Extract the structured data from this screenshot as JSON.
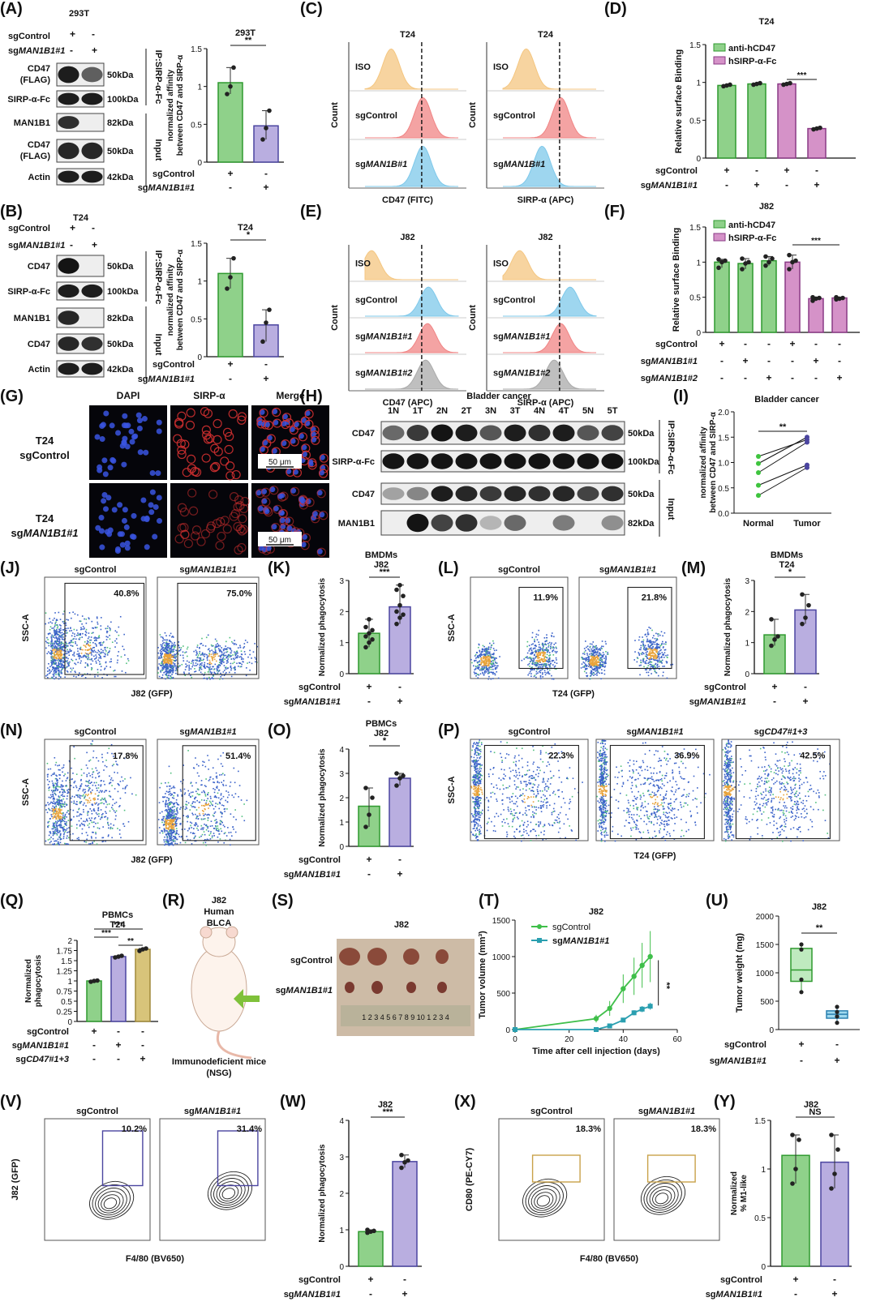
{
  "panels": {
    "A": {
      "letter": "(A)",
      "cell": "293T",
      "title": "293T",
      "conds": [
        {
          "label": "sgControl",
          "vals": [
            "+",
            "-"
          ]
        },
        {
          "label": "sgMAN1B1#1",
          "vals": [
            "-",
            "+"
          ]
        }
      ],
      "bands": [
        {
          "label": "CD47 (FLAG)",
          "kda": "50kDa"
        },
        {
          "label": "SIRP-α-Fc",
          "kda": "100kDa"
        },
        {
          "label": "MAN1B1",
          "kda": "82kDa"
        },
        {
          "label": "CD47 (FLAG)",
          "kda": "50kDa"
        },
        {
          "label": "Actin",
          "kda": "42kDa"
        }
      ],
      "ip": "IP:SIRP-α-Fc",
      "input": "Input",
      "ylabel": "normalized affinity between CD47 and SIRP-α",
      "sig": "**"
    },
    "B": {
      "letter": "(B)",
      "cell": "T24",
      "title": "T24",
      "conds": [
        {
          "label": "sgControl",
          "vals": [
            "+",
            "-"
          ]
        },
        {
          "label": "sgMAN1B1#1",
          "vals": [
            "-",
            "+"
          ]
        }
      ],
      "bands": [
        {
          "label": "CD47",
          "kda": "50kDa"
        },
        {
          "label": "SIRP-α-Fc",
          "kda": "100kDa"
        },
        {
          "label": "MAN1B1",
          "kda": "82kDa"
        },
        {
          "label": "CD47",
          "kda": "50kDa"
        },
        {
          "label": "Actin",
          "kda": "42kDa"
        }
      ],
      "ip": "IP:SIRP-α-Fc",
      "input": "Input",
      "ylabel": "normalized affinity between CD47 and SIRP-α",
      "sig": "*"
    },
    "C": {
      "letter": "(C)",
      "titles": [
        "T24",
        "T24"
      ],
      "rows": [
        "ISO",
        "sgControl",
        "sgMAN1B#1"
      ],
      "xlabels": [
        "CD47 (FITC)",
        "SIRP-α (APC)"
      ],
      "ylabel": "Count"
    },
    "D": {
      "letter": "(D)",
      "title": "T24",
      "legend": [
        "anti-hCD47",
        "hSIRP-α-Fc"
      ],
      "ylabel": "Relative surface Binding",
      "sig": "***"
    },
    "E": {
      "letter": "(E)",
      "titles": [
        "J82",
        "J82"
      ],
      "rows": [
        "ISO",
        "sgControl",
        "sgMAN1B1#1",
        "sgMAN1B1#2"
      ],
      "xlabels": [
        "CD47 (APC)",
        "SIRP-α (APC)"
      ],
      "ylabel": "Count"
    },
    "F": {
      "letter": "(F)",
      "title": "J82",
      "legend": [
        "anti-hCD47",
        "hSIRP-α-Fc"
      ],
      "ylabel": "Relative surface Binding",
      "sig": "***"
    },
    "G": {
      "letter": "(G)",
      "cols": [
        "DAPI",
        "SIRP-α",
        "Merge"
      ],
      "rows": [
        "T24 sgControl",
        "T24 sgMAN1B1#1"
      ],
      "scale": "50 μm"
    },
    "H": {
      "letter": "(H)",
      "title": "Bladder cancer",
      "lanes": [
        "1N",
        "1T",
        "2N",
        "2T",
        "3N",
        "3T",
        "4N",
        "4T",
        "5N",
        "5T"
      ],
      "bands": [
        {
          "label": "CD47",
          "kda": "50kDa"
        },
        {
          "label": "SIRP-α-Fc",
          "kda": "100kDa"
        },
        {
          "label": "CD47",
          "kda": "50kDa"
        },
        {
          "label": "MAN1B1",
          "kda": "82kDa"
        }
      ],
      "ip": "IP:SIRP-α-Fc",
      "input": "Input"
    },
    "I": {
      "letter": "(I)",
      "title": "Bladder cancer",
      "ylabel": "normalized affinity between CD47 and SIRP-α",
      "xcats": [
        "Normal",
        "Tumor"
      ],
      "sig": "**"
    },
    "J": {
      "letter": "(J)",
      "titles": [
        "sgControl",
        "sgMAN1B1#1"
      ],
      "pcts": [
        "40.8%",
        "75.0%"
      ],
      "xlabel": "J82 (GFP)",
      "ylabel": "SSC-A"
    },
    "K": {
      "letter": "(K)",
      "title": "BMDMs J82",
      "ylabel": "Normalized phagocytosis",
      "sig": "***"
    },
    "L": {
      "letter": "(L)",
      "titles": [
        "sgControl",
        "sgMAN1B1#1"
      ],
      "pcts": [
        "11.9%",
        "21.8%"
      ],
      "xlabel": "T24 (GFP)",
      "ylabel": "SSC-A"
    },
    "M": {
      "letter": "(M)",
      "title": "BMDMs T24",
      "ylabel": "Normalized phagocytosis",
      "sig": "*"
    },
    "N": {
      "letter": "(N)",
      "titles": [
        "sgControl",
        "sgMAN1B1#1"
      ],
      "pcts": [
        "17.8%",
        "51.4%"
      ],
      "xlabel": "J82 (GFP)",
      "ylabel": "SSC-A"
    },
    "O": {
      "letter": "(O)",
      "title": "PBMCs J82",
      "ylabel": "Normalized phagocytosis",
      "sig": "*"
    },
    "P": {
      "letter": "(P)",
      "titles": [
        "sgControl",
        "sgMAN1B1#1",
        "sgCD47#1+3"
      ],
      "pcts": [
        "22.3%",
        "36.9%",
        "42.5%"
      ],
      "xlabel": "T24 (GFP)",
      "ylabel": "SSC-A"
    },
    "Q": {
      "letter": "(Q)",
      "title": "PBMCs T24",
      "ylabel": "Normalized phagocytosis",
      "sigs": [
        "***",
        "***",
        "**"
      ]
    },
    "R": {
      "letter": "(R)",
      "title": "J82 Human BLCA",
      "caption": "Immunodeficient mice (NSG)"
    },
    "S": {
      "letter": "(S)",
      "title": "J82",
      "rows": [
        "sgControl",
        "sgMAN1B1#1"
      ],
      "ruler": "1 2 3 4 5 6 7 8 9 10 1 2 3 4"
    },
    "T": {
      "letter": "(T)",
      "title": "J82",
      "legend": [
        "sgControl",
        "sgMAN1B1#1"
      ],
      "ylabel": "Tumor volume (mm³)",
      "xlabel": "Time after cell injection (days)",
      "sig": "**"
    },
    "U": {
      "letter": "(U)",
      "title": "J82",
      "ylabel": "Tumor weight (mg)",
      "sig": "**"
    },
    "V": {
      "letter": "(V)",
      "titles": [
        "sgControl",
        "sgMAN1B1#1"
      ],
      "pcts": [
        "10.2%",
        "31.4%"
      ],
      "xlabel": "F4/80 (BV650)",
      "ylabel": "J82 (GFP)"
    },
    "W": {
      "letter": "(W)",
      "title": "J82",
      "ylabel": "Normalized phagocytosis",
      "sig": "***"
    },
    "X": {
      "letter": "(X)",
      "titles": [
        "sgControl",
        "sgMAN1B1#1"
      ],
      "pcts": [
        "18.3%",
        "18.3%"
      ],
      "xlabel": "F4/80 (BV650)",
      "ylabel": "CD80 (PE-CY7)"
    },
    "Y": {
      "letter": "(Y)",
      "title": "J82",
      "ylabel": "Normalized % M1-like",
      "sig": "NS"
    }
  },
  "colors": {
    "green": "#8fd18a",
    "green_edge": "#2f9a2f",
    "purple": "#b9aee0",
    "purple_edge": "#4b45a0",
    "magenta": "#d592c8",
    "magenta_edge": "#8a3a86",
    "gold": "#d8c47a"
  },
  "chart_data": [
    {
      "panel": "A",
      "type": "bar",
      "categories": [
        "sgControl",
        "sgMAN1B1#1"
      ],
      "values": [
        1.05,
        0.48
      ],
      "ylim": [
        0,
        1.5
      ],
      "yticks": [
        0,
        0.5,
        1.0,
        1.5
      ],
      "points": [
        [
          0.9,
          1.0,
          1.25
        ],
        [
          0.3,
          0.45,
          0.68
        ]
      ]
    },
    {
      "panel": "B",
      "type": "bar",
      "categories": [
        "sgControl",
        "sgMAN1B1#1"
      ],
      "values": [
        1.1,
        0.42
      ],
      "ylim": [
        0,
        1.5
      ],
      "yticks": [
        0,
        0.5,
        1.0,
        1.5
      ],
      "points": [
        [
          0.9,
          1.05,
          1.3
        ],
        [
          0.2,
          0.45,
          0.62
        ]
      ]
    },
    {
      "panel": "D",
      "type": "bar",
      "categories": [
        "sgControl",
        "sgMAN1B1#1",
        "sgControl",
        "sgMAN1B1#1"
      ],
      "values": [
        0.96,
        0.98,
        0.98,
        0.39
      ],
      "ylim": [
        0,
        1.5
      ],
      "yticks": [
        0.0,
        0.5,
        1.0,
        1.5
      ],
      "series_of_bar": [
        0,
        0,
        1,
        1
      ]
    },
    {
      "panel": "F",
      "type": "bar",
      "values": [
        1.0,
        0.98,
        1.02,
        1.0,
        0.48,
        0.49
      ],
      "ylim": [
        0,
        1.5
      ],
      "yticks": [
        0.0,
        0.5,
        1.0,
        1.5
      ],
      "series_of_bar": [
        0,
        0,
        0,
        1,
        1,
        1
      ],
      "conds": [
        {
          "label": "sgControl",
          "vals": [
            "+",
            "-",
            "-",
            "+",
            "-",
            "-"
          ]
        },
        {
          "label": "sgMAN1B1#1",
          "vals": [
            "-",
            "+",
            "-",
            "-",
            "+",
            "-"
          ]
        },
        {
          "label": "sgMAN1B1#2",
          "vals": [
            "-",
            "-",
            "+",
            "-",
            "-",
            "+"
          ]
        }
      ]
    },
    {
      "panel": "I",
      "type": "line",
      "categories": [
        "Normal",
        "Tumor"
      ],
      "pairs": [
        [
          1.12,
          1.45
        ],
        [
          0.98,
          1.5
        ],
        [
          0.8,
          1.4
        ],
        [
          0.55,
          0.95
        ],
        [
          0.35,
          0.9
        ]
      ],
      "ylim": [
        0,
        2.0
      ],
      "yticks": [
        0.0,
        0.5,
        1.0,
        1.5,
        2.0
      ]
    },
    {
      "panel": "K",
      "type": "bar",
      "categories": [
        "sgControl",
        "sgMAN1B1#1"
      ],
      "values": [
        1.3,
        2.15
      ],
      "ylim": [
        0,
        3
      ],
      "yticks": [
        0,
        1,
        2,
        3
      ],
      "points": [
        [
          0.85,
          1.0,
          1.1,
          1.2,
          1.3,
          1.4,
          1.5,
          1.75
        ],
        [
          1.6,
          1.8,
          1.9,
          2.0,
          2.2,
          2.5,
          2.7,
          2.85
        ]
      ]
    },
    {
      "panel": "M",
      "type": "bar",
      "categories": [
        "sgControl",
        "sgMAN1B1#1"
      ],
      "values": [
        1.25,
        2.05
      ],
      "ylim": [
        0,
        3
      ],
      "yticks": [
        0,
        1,
        2,
        3
      ],
      "points": [
        [
          0.9,
          1.1,
          1.2,
          1.75
        ],
        [
          1.6,
          1.8,
          2.2,
          2.55
        ]
      ]
    },
    {
      "panel": "O",
      "type": "bar",
      "categories": [
        "sgControl",
        "sgMAN1B1#1"
      ],
      "values": [
        1.65,
        2.8
      ],
      "ylim": [
        0,
        4
      ],
      "yticks": [
        0,
        1,
        2,
        3,
        4
      ],
      "points": [
        [
          0.8,
          1.3,
          2.0,
          2.4
        ],
        [
          2.5,
          2.8,
          2.9,
          3.0
        ]
      ]
    },
    {
      "panel": "Q",
      "type": "bar",
      "categories": [
        "sgControl",
        "sgMAN1B1#1",
        "sgCD47#1+3"
      ],
      "values": [
        1.0,
        1.6,
        1.78
      ],
      "ylim": [
        0,
        2.0
      ],
      "yticks": [
        0.0,
        0.25,
        0.5,
        0.75,
        1.0,
        1.25,
        1.5,
        1.75,
        2.0
      ],
      "conds": [
        {
          "label": "sgControl",
          "vals": [
            "+",
            "-",
            "-"
          ]
        },
        {
          "label": "sgMAN1B1#1",
          "vals": [
            "-",
            "+",
            "-"
          ]
        },
        {
          "label": "sgCD47#1+3",
          "vals": [
            "-",
            "-",
            "+"
          ]
        }
      ]
    },
    {
      "panel": "T",
      "type": "line",
      "x": [
        0,
        30,
        35,
        40,
        44,
        47,
        50
      ],
      "series": [
        {
          "name": "sgControl",
          "values": [
            0,
            150,
            290,
            560,
            730,
            880,
            1000
          ]
        },
        {
          "name": "sgMAN1B1#1",
          "values": [
            0,
            0,
            50,
            130,
            230,
            280,
            320
          ]
        }
      ],
      "ylim": [
        0,
        1500
      ],
      "xlim": [
        0,
        60
      ],
      "yticks": [
        0,
        500,
        1000,
        1500
      ],
      "xticks": [
        0,
        20,
        40,
        60
      ]
    },
    {
      "panel": "U",
      "type": "box",
      "categories": [
        "sgControl",
        "sgMAN1B1#1"
      ],
      "box": [
        [
          660,
          850,
          1050,
          1430,
          1500
        ],
        [
          120,
          200,
          270,
          330,
          400
        ]
      ],
      "ylim": [
        0,
        2000
      ],
      "yticks": [
        0,
        500,
        1000,
        1500,
        2000
      ]
    },
    {
      "panel": "W",
      "type": "bar",
      "categories": [
        "sgControl",
        "sgMAN1B1#1"
      ],
      "values": [
        0.95,
        2.87
      ],
      "ylim": [
        0,
        4
      ],
      "yticks": [
        0,
        1,
        2,
        3,
        4
      ],
      "points": [
        [
          0.92,
          0.95,
          0.97,
          1.0
        ],
        [
          2.7,
          2.85,
          2.9,
          3.05
        ]
      ]
    },
    {
      "panel": "Y",
      "type": "bar",
      "categories": [
        "sgControl",
        "sgMAN1B1#1"
      ],
      "values": [
        1.14,
        1.07
      ],
      "ylim": [
        0,
        1.5
      ],
      "yticks": [
        0.0,
        0.5,
        1.0,
        1.5
      ],
      "points": [
        [
          0.85,
          1.0,
          1.3,
          1.35
        ],
        [
          0.8,
          0.95,
          1.2,
          1.35
        ]
      ]
    }
  ]
}
